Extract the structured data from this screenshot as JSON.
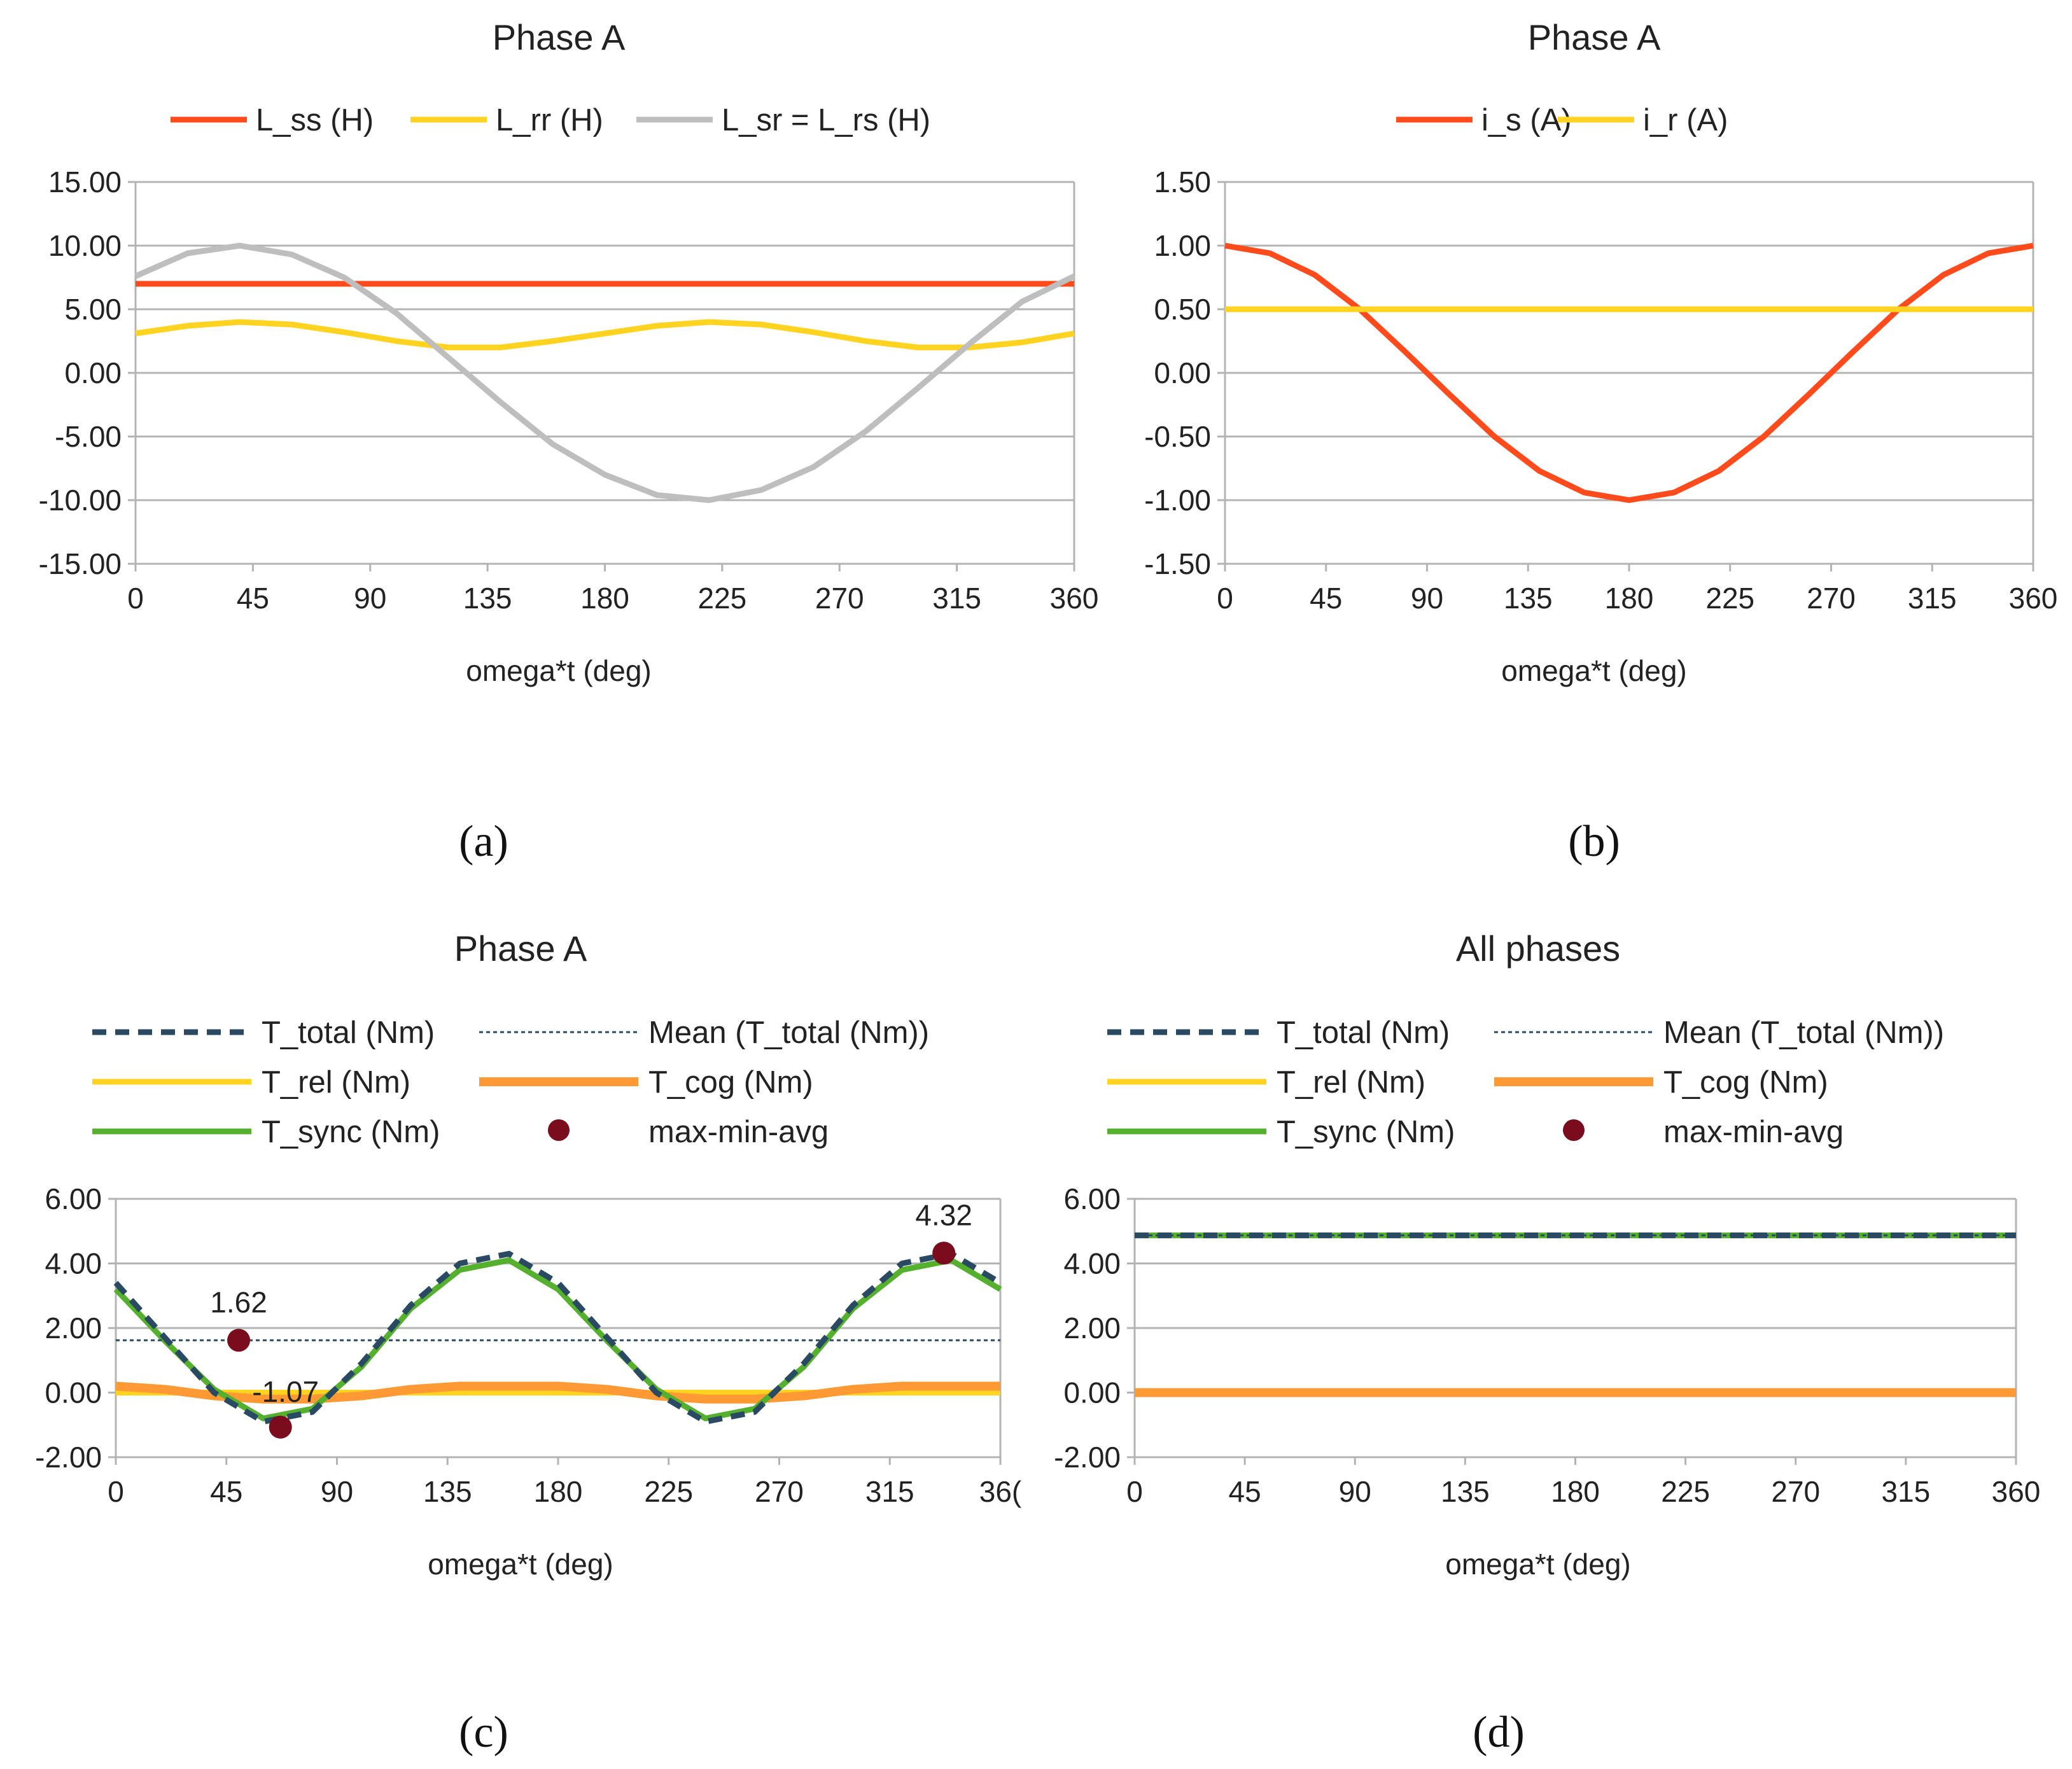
{
  "figure": {
    "captions": [
      "(a)",
      "(b)",
      "(c)",
      "(d)"
    ]
  },
  "colors": {
    "orange_red": "#ff4a1c",
    "yellow": "#ffd320",
    "gray": "#bebebe",
    "navy": "#2a4a63",
    "orange": "#ff9933",
    "green": "#55b02d",
    "dot": "#7a0c1e",
    "grid": "#b3b3b3"
  },
  "chart_data": [
    {
      "type": "line",
      "title": "Phase A",
      "xlabel": "omega*t (deg)",
      "ylabel": "",
      "xlim": [
        0,
        360
      ],
      "ylim": [
        -15,
        15
      ],
      "xticks": [
        "0",
        "45",
        "90",
        "135",
        "180",
        "225",
        "270",
        "315",
        "360"
      ],
      "yticks": [
        "15.00",
        "10.00",
        "5.00",
        "0.00",
        "-5.00",
        "-10.00",
        "-15.00"
      ],
      "grid": true,
      "legend_position": "top",
      "x": [
        0,
        20,
        40,
        60,
        80,
        100,
        120,
        140,
        160,
        180,
        200,
        220,
        240,
        260,
        280,
        300,
        320,
        340,
        360
      ],
      "series": [
        {
          "name": "L_ss (H)",
          "color": "#ff4a1c",
          "values": [
            7,
            7,
            7,
            7,
            7,
            7,
            7,
            7,
            7,
            7,
            7,
            7,
            7,
            7,
            7,
            7,
            7,
            7,
            7
          ]
        },
        {
          "name": "L_rr (H)",
          "color": "#ffd320",
          "values": [
            3.1,
            3.7,
            4.0,
            3.8,
            3.2,
            2.5,
            2.0,
            2.0,
            2.5,
            3.1,
            3.7,
            4.0,
            3.8,
            3.2,
            2.5,
            2.0,
            2.0,
            2.4,
            3.1
          ]
        },
        {
          "name": "L_sr = L_rs (H)",
          "color": "#bebebe",
          "values": [
            7.6,
            9.4,
            10.0,
            9.3,
            7.5,
            4.7,
            1.2,
            -2.3,
            -5.6,
            -8.0,
            -9.6,
            -10.0,
            -9.2,
            -7.4,
            -4.6,
            -1.2,
            2.3,
            5.6,
            7.6
          ]
        }
      ]
    },
    {
      "type": "line",
      "title": "Phase A",
      "xlabel": "omega*t  (deg)",
      "ylabel": "",
      "xlim": [
        0,
        360
      ],
      "ylim": [
        -1.5,
        1.5
      ],
      "xticks": [
        "0",
        "45",
        "90",
        "135",
        "180",
        "225",
        "270",
        "315",
        "360"
      ],
      "yticks": [
        "1.50",
        "1.00",
        "0.50",
        "0.00",
        "-0.50",
        "-1.00",
        "-1.50"
      ],
      "grid": true,
      "legend_position": "top",
      "x": [
        0,
        20,
        40,
        60,
        80,
        100,
        120,
        140,
        160,
        180,
        200,
        220,
        240,
        260,
        280,
        300,
        320,
        340,
        360
      ],
      "series": [
        {
          "name": "i_s (A)",
          "color": "#ff4a1c",
          "values": [
            1.0,
            0.94,
            0.77,
            0.5,
            0.17,
            -0.17,
            -0.5,
            -0.77,
            -0.94,
            -1.0,
            -0.94,
            -0.77,
            -0.5,
            -0.17,
            0.17,
            0.5,
            0.77,
            0.94,
            1.0
          ]
        },
        {
          "name": "i_r (A)",
          "color": "#ffd320",
          "values": [
            0.5,
            0.5,
            0.5,
            0.5,
            0.5,
            0.5,
            0.5,
            0.5,
            0.5,
            0.5,
            0.5,
            0.5,
            0.5,
            0.5,
            0.5,
            0.5,
            0.5,
            0.5,
            0.5
          ]
        }
      ]
    },
    {
      "type": "line",
      "title": "Phase A",
      "xlabel": "omega*t (deg)",
      "ylabel": "",
      "xlim": [
        0,
        360
      ],
      "ylim": [
        -2,
        6
      ],
      "xticks": [
        "0",
        "45",
        "90",
        "135",
        "180",
        "225",
        "270",
        "315",
        "36("
      ],
      "yticks": [
        "6.00",
        "4.00",
        "2.00",
        "0.00",
        "-2.00"
      ],
      "grid": true,
      "legend_position": "top",
      "x": [
        0,
        20,
        40,
        60,
        80,
        100,
        120,
        140,
        160,
        180,
        200,
        220,
        240,
        260,
        280,
        300,
        320,
        340,
        360
      ],
      "series": [
        {
          "name": "T_total (Nm)",
          "color": "#2a4a63",
          "dash": "dashed",
          "values": [
            3.4,
            1.7,
            0.0,
            -0.9,
            -0.6,
            0.9,
            2.7,
            4.0,
            4.3,
            3.4,
            1.7,
            0.0,
            -0.9,
            -0.6,
            0.9,
            2.7,
            4.0,
            4.3,
            3.4
          ]
        },
        {
          "name": "Mean (T_total (Nm))",
          "color": "#2a4a63",
          "dash": "dotted",
          "values": [
            1.62,
            1.62,
            1.62,
            1.62,
            1.62,
            1.62,
            1.62,
            1.62,
            1.62,
            1.62,
            1.62,
            1.62,
            1.62,
            1.62,
            1.62,
            1.62,
            1.62,
            1.62,
            1.62
          ]
        },
        {
          "name": "T_rel (Nm)",
          "color": "#ffd320",
          "values": [
            0,
            0,
            0,
            0,
            0,
            0,
            0,
            0,
            0,
            0,
            0,
            0,
            0,
            0,
            0,
            0,
            0,
            0,
            0
          ]
        },
        {
          "name": "T_cog (Nm)",
          "color": "#ff9933",
          "values": [
            0.2,
            0.1,
            -0.1,
            -0.2,
            -0.2,
            -0.1,
            0.1,
            0.2,
            0.2,
            0.2,
            0.1,
            -0.1,
            -0.2,
            -0.2,
            -0.1,
            0.1,
            0.2,
            0.2,
            0.2
          ]
        },
        {
          "name": "T_sync (Nm)",
          "color": "#55b02d",
          "values": [
            3.2,
            1.6,
            0.1,
            -0.8,
            -0.5,
            0.8,
            2.6,
            3.8,
            4.1,
            3.2,
            1.6,
            0.1,
            -0.8,
            -0.5,
            0.8,
            2.6,
            3.8,
            4.1,
            3.2
          ]
        }
      ],
      "markers": {
        "name": "max-min-avg",
        "color": "#7a0c1e",
        "points": [
          {
            "x": 50,
            "y": 1.62,
            "label": "1.62"
          },
          {
            "x": 67,
            "y": -1.07,
            "label": "-1.07"
          },
          {
            "x": 337,
            "y": 4.32,
            "label": "4.32"
          }
        ]
      }
    },
    {
      "type": "line",
      "title": "All phases",
      "xlabel": "omega*t (deg)",
      "ylabel": "",
      "xlim": [
        0,
        360
      ],
      "ylim": [
        -2,
        6
      ],
      "xticks": [
        "0",
        "45",
        "90",
        "135",
        "180",
        "225",
        "270",
        "315",
        "360"
      ],
      "yticks": [
        "6.00",
        "4.00",
        "2.00",
        "0.00",
        "-2.00"
      ],
      "grid": true,
      "legend_position": "top",
      "x": [
        0,
        360
      ],
      "series": [
        {
          "name": "T_total (Nm)",
          "color": "#2a4a63",
          "dash": "dashed",
          "values": [
            4.87,
            4.87
          ]
        },
        {
          "name": "Mean (T_total (Nm))",
          "color": "#2a4a63",
          "dash": "dotted",
          "values": [
            4.87,
            4.87
          ]
        },
        {
          "name": "T_rel (Nm)",
          "color": "#ffd320",
          "values": [
            0,
            0
          ]
        },
        {
          "name": "T_cog (Nm)",
          "color": "#ff9933",
          "values": [
            0,
            0
          ]
        },
        {
          "name": "T_sync (Nm)",
          "color": "#55b02d",
          "values": [
            4.87,
            4.87
          ]
        }
      ],
      "markers": {
        "name": "max-min-avg",
        "color": "#7a0c1e",
        "points": []
      }
    }
  ]
}
